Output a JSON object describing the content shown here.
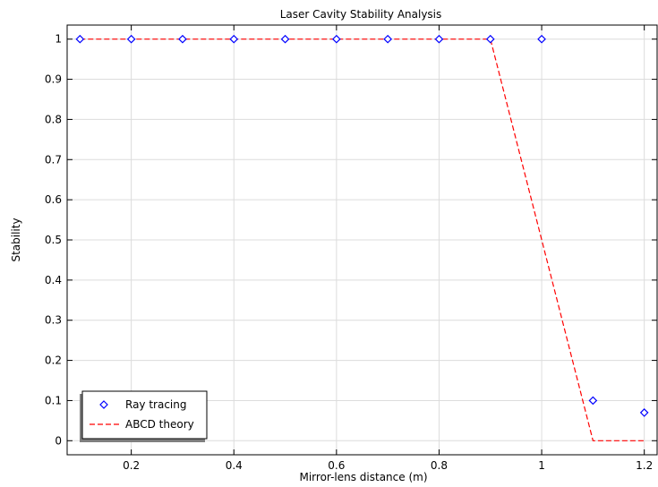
{
  "chart_data": {
    "type": "scatter",
    "title": "Laser Cavity Stability Analysis",
    "xlabel": "Mirror-lens distance (m)",
    "ylabel": "Stability",
    "xlim": [
      0.075,
      1.225
    ],
    "ylim": [
      -0.035,
      1.035
    ],
    "xticks": [
      0.2,
      0.4,
      0.6,
      0.8,
      1,
      1.2
    ],
    "yticks": [
      0,
      0.1,
      0.2,
      0.3,
      0.4,
      0.5,
      0.6,
      0.7,
      0.8,
      0.9,
      1
    ],
    "grid": true,
    "legend_position": "bottom-left",
    "series": [
      {
        "name": "Ray tracing",
        "type": "scatter",
        "marker": "diamond",
        "color": "#0000ff",
        "x": [
          0.1,
          0.2,
          0.3,
          0.4,
          0.5,
          0.6,
          0.7,
          0.8,
          0.9,
          1.0,
          1.1,
          1.2
        ],
        "y": [
          1,
          1,
          1,
          1,
          1,
          1,
          1,
          1,
          1,
          1,
          0.1,
          0.07
        ]
      },
      {
        "name": "ABCD theory",
        "type": "line",
        "dash": "dashed",
        "color": "#ff0000",
        "x": [
          0.1,
          0.2,
          0.3,
          0.4,
          0.5,
          0.6,
          0.7,
          0.8,
          0.9,
          1.0,
          1.1,
          1.2
        ],
        "y": [
          1,
          1,
          1,
          1,
          1,
          1,
          1,
          1,
          1,
          0.5,
          0,
          0
        ]
      }
    ]
  }
}
